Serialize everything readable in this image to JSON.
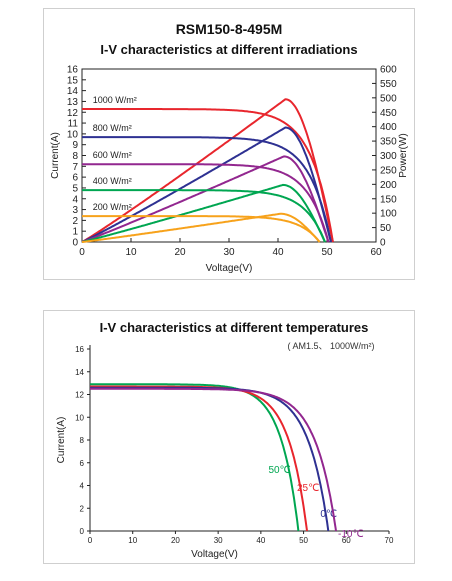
{
  "chart_data": [
    {
      "type": "line",
      "title": "RSM150-8-495M",
      "subtitle": "I-V characteristics at different irradiations",
      "xlabel": "Voltage(V)",
      "ylabel": "Current(A)",
      "y2label": "Power(W)",
      "xlim": [
        0,
        60
      ],
      "ylim": [
        0,
        16
      ],
      "y2lim": [
        0,
        600
      ],
      "xticks": [
        "0",
        "10",
        "20",
        "30",
        "40",
        "50",
        "60"
      ],
      "yticks": [
        "0",
        "1",
        "2",
        "3",
        "4",
        "5",
        "6",
        "7",
        "8",
        "9",
        "10",
        "11",
        "12",
        "13",
        "14",
        "15",
        "16"
      ],
      "y2ticks": [
        "0",
        "50",
        "100",
        "150",
        "200",
        "250",
        "300",
        "350",
        "400",
        "450",
        "500",
        "550",
        "600"
      ],
      "grid": false,
      "series": [
        {
          "name": "1000 W/m²",
          "color": "#e8262d",
          "isc": 12.3,
          "voc": 51.2,
          "pmax": 495,
          "vmp": 41.5
        },
        {
          "name": "800 W/m²",
          "color": "#2e3192",
          "isc": 9.7,
          "voc": 50.8,
          "pmax": 397,
          "vmp": 41.5
        },
        {
          "name": "600 W/m²",
          "color": "#92278f",
          "isc": 7.2,
          "voc": 50.3,
          "pmax": 297,
          "vmp": 41.2
        },
        {
          "name": "400 W/m²",
          "color": "#00a651",
          "isc": 4.8,
          "voc": 49.6,
          "pmax": 198,
          "vmp": 41.0
        },
        {
          "name": "200 W/m²",
          "color": "#f7a21b",
          "isc": 2.4,
          "voc": 48.5,
          "pmax": 98,
          "vmp": 40.5
        }
      ]
    },
    {
      "type": "line",
      "title": "I-V characteristics at different temperatures",
      "subtitle": "( AM1.5、 1000W/m²)",
      "xlabel": "Voltage(V)",
      "ylabel": "Current(A)",
      "xlim": [
        0,
        70
      ],
      "ylim": [
        0,
        16
      ],
      "xticks": [
        "0",
        "10",
        "20",
        "30",
        "40",
        "50",
        "60",
        "70"
      ],
      "yticks": [
        "0",
        "2",
        "4",
        "6",
        "8",
        "10",
        "12",
        "14",
        "16"
      ],
      "grid": false,
      "series": [
        {
          "name": "50℃",
          "color": "#00a651",
          "isc": 12.9,
          "voc": 48.8
        },
        {
          "name": "25℃",
          "color": "#e8262d",
          "isc": 12.7,
          "voc": 50.8
        },
        {
          "name": "0℃",
          "color": "#2e3192",
          "isc": 12.6,
          "voc": 55.8
        },
        {
          "name": "-10℃",
          "color": "#92278f",
          "isc": 12.5,
          "voc": 57.6
        }
      ]
    }
  ]
}
